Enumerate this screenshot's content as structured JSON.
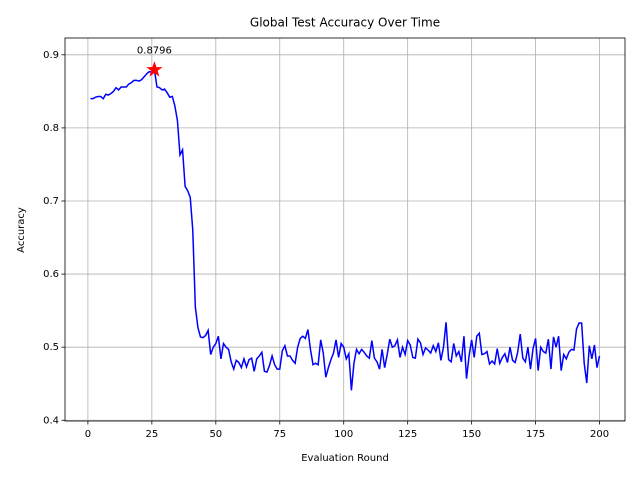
{
  "chart_data": {
    "type": "line",
    "title": "Global Test Accuracy Over Time",
    "x_label": "Evaluation Round",
    "y_label": "Accuracy",
    "x": [
      1,
      2,
      3,
      4,
      5,
      6,
      7,
      8,
      9,
      10,
      11,
      12,
      13,
      14,
      15,
      16,
      17,
      18,
      19,
      20,
      21,
      22,
      23,
      24,
      25,
      26,
      27,
      28,
      29,
      30,
      31,
      32,
      33,
      34,
      35,
      36,
      37,
      38,
      39,
      40,
      41,
      42,
      43,
      44,
      45,
      46,
      47,
      48,
      49,
      50,
      51,
      52,
      53,
      54,
      55,
      56,
      57,
      58,
      59,
      60,
      61,
      62,
      63,
      64,
      65,
      66,
      67,
      68,
      69,
      70,
      71,
      72,
      73,
      74,
      75,
      76,
      77,
      78,
      79,
      80,
      81,
      82,
      83,
      84,
      85,
      86,
      87,
      88,
      89,
      90,
      91,
      92,
      93,
      94,
      95,
      96,
      97,
      98,
      99,
      100,
      101,
      102,
      103,
      104,
      105,
      106,
      107,
      108,
      109,
      110,
      111,
      112,
      113,
      114,
      115,
      116,
      117,
      118,
      119,
      120,
      121,
      122,
      123,
      124,
      125,
      126,
      127,
      128,
      129,
      130,
      131,
      132,
      133,
      134,
      135,
      136,
      137,
      138,
      139,
      140,
      141,
      142,
      143,
      144,
      145,
      146,
      147,
      148,
      149,
      150,
      151,
      152,
      153,
      154,
      155,
      156,
      157,
      158,
      159,
      160,
      161,
      162,
      163,
      164,
      165,
      166,
      167,
      168,
      169,
      170,
      171,
      172,
      173,
      174,
      175,
      176,
      177,
      178,
      179,
      180,
      181,
      182,
      183,
      184,
      185,
      186,
      187,
      188,
      189,
      190,
      191,
      192,
      193,
      194,
      195,
      196,
      197,
      198,
      199,
      200
    ],
    "values": [
      0.84,
      0.84,
      0.842,
      0.843,
      0.843,
      0.84,
      0.846,
      0.845,
      0.847,
      0.85,
      0.855,
      0.852,
      0.856,
      0.856,
      0.856,
      0.86,
      0.862,
      0.865,
      0.865,
      0.864,
      0.866,
      0.87,
      0.874,
      0.877,
      0.876,
      0.8796,
      0.856,
      0.855,
      0.852,
      0.853,
      0.848,
      0.842,
      0.843,
      0.83,
      0.81,
      0.763,
      0.77,
      0.72,
      0.714,
      0.705,
      0.66,
      0.555,
      0.527,
      0.514,
      0.513,
      0.516,
      0.523,
      0.49,
      0.5,
      0.505,
      0.515,
      0.484,
      0.505,
      0.5,
      0.497,
      0.48,
      0.47,
      0.482,
      0.479,
      0.472,
      0.484,
      0.473,
      0.483,
      0.485,
      0.467,
      0.484,
      0.488,
      0.493,
      0.467,
      0.466,
      0.475,
      0.488,
      0.476,
      0.47,
      0.47,
      0.495,
      0.502,
      0.488,
      0.488,
      0.482,
      0.478,
      0.5,
      0.512,
      0.515,
      0.512,
      0.524,
      0.497,
      0.476,
      0.478,
      0.476,
      0.51,
      0.492,
      0.459,
      0.472,
      0.483,
      0.492,
      0.51,
      0.486,
      0.505,
      0.5,
      0.484,
      0.491,
      0.441,
      0.478,
      0.497,
      0.491,
      0.497,
      0.493,
      0.488,
      0.485,
      0.509,
      0.485,
      0.48,
      0.47,
      0.497,
      0.472,
      0.49,
      0.511,
      0.5,
      0.502,
      0.51,
      0.486,
      0.5,
      0.49,
      0.509,
      0.503,
      0.486,
      0.485,
      0.511,
      0.506,
      0.49,
      0.499,
      0.496,
      0.492,
      0.502,
      0.494,
      0.506,
      0.482,
      0.5,
      0.534,
      0.483,
      0.48,
      0.505,
      0.488,
      0.494,
      0.48,
      0.515,
      0.457,
      0.488,
      0.51,
      0.486,
      0.515,
      0.519,
      0.49,
      0.491,
      0.494,
      0.477,
      0.481,
      0.477,
      0.498,
      0.478,
      0.486,
      0.491,
      0.479,
      0.5,
      0.482,
      0.479,
      0.493,
      0.518,
      0.485,
      0.48,
      0.5,
      0.47,
      0.498,
      0.512,
      0.468,
      0.5,
      0.494,
      0.492,
      0.511,
      0.47,
      0.514,
      0.5,
      0.515,
      0.468,
      0.49,
      0.484,
      0.493,
      0.497,
      0.496,
      0.525,
      0.533,
      0.533,
      0.478,
      0.451,
      0.502,
      0.484,
      0.503,
      0.472,
      0.488
    ],
    "color": "#0000ff",
    "highlight": {
      "x": 26,
      "y": 0.8796,
      "label": "0.8796",
      "color": "#ff0000"
    },
    "xlim": [
      -8.95,
      209.95
    ],
    "xticks": [
      0,
      25,
      50,
      75,
      100,
      125,
      150,
      175,
      200
    ],
    "ylim": [
      0.399,
      0.923
    ],
    "yticks": [
      0.4,
      0.5,
      0.6,
      0.7,
      0.8,
      0.9
    ],
    "grid": true
  }
}
